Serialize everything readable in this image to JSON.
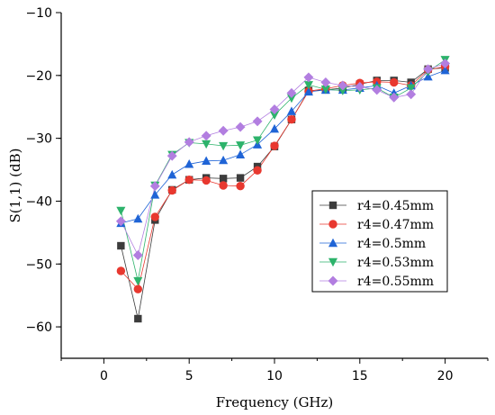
{
  "chart_data": {
    "type": "line",
    "xlabel": "Frequency (GHz)",
    "ylabel": "S(1,1) (dB)",
    "xlim": [
      -2.5,
      22.5
    ],
    "ylim": [
      -65,
      -10
    ],
    "xticks": [
      0,
      5,
      10,
      15,
      20
    ],
    "yticks": [
      -60,
      -50,
      -40,
      -30,
      -20,
      -10
    ],
    "legend_position": "center-right",
    "grid": false,
    "x": [
      1,
      2,
      3,
      4,
      5,
      6,
      7,
      8,
      9,
      10,
      11,
      12,
      13,
      14,
      15,
      16,
      17,
      18,
      19,
      20
    ],
    "series": [
      {
        "name": "r4=0.45mm",
        "color": "#3c3c3c",
        "marker": "square",
        "values": [
          -47.1,
          -58.7,
          -43.0,
          -38.2,
          -36.6,
          -36.3,
          -36.4,
          -36.3,
          -34.5,
          -31.3,
          -27.0,
          -22.4,
          -22.3,
          -22.0,
          -21.4,
          -20.8,
          -20.8,
          -21.1,
          -19.0,
          -18.8
        ]
      },
      {
        "name": "r4=0.47mm",
        "color": "#e8382f",
        "marker": "circle",
        "values": [
          -51.1,
          -54.0,
          -42.5,
          -38.3,
          -36.6,
          -36.7,
          -37.5,
          -37.6,
          -35.1,
          -31.2,
          -27.0,
          -22.5,
          -22.1,
          -21.6,
          -21.2,
          -21.0,
          -21.1,
          -21.6,
          -19.1,
          -18.6
        ]
      },
      {
        "name": "r4=0.5mm",
        "color": "#1f64d6",
        "marker": "triangle-up",
        "values": [
          -43.5,
          -42.8,
          -39.0,
          -35.8,
          -34.1,
          -33.6,
          -33.5,
          -32.6,
          -31.0,
          -28.5,
          -25.7,
          -22.6,
          -22.3,
          -22.3,
          -22.0,
          -21.6,
          -22.8,
          -21.6,
          -20.2,
          -19.2
        ]
      },
      {
        "name": "r4=0.53mm",
        "color": "#2db36b",
        "marker": "triangle-down",
        "values": [
          -41.5,
          -52.7,
          -37.5,
          -32.6,
          -30.7,
          -30.9,
          -31.2,
          -31.1,
          -30.3,
          -26.3,
          -23.6,
          -21.5,
          -22.2,
          -22.4,
          -22.3,
          -22.0,
          -23.5,
          -22.0,
          -19.4,
          -17.5
        ]
      },
      {
        "name": "r4=0.55mm",
        "color": "#b27ee0",
        "marker": "diamond",
        "values": [
          -43.2,
          -48.6,
          -37.6,
          -32.8,
          -30.6,
          -29.6,
          -28.8,
          -28.2,
          -27.3,
          -25.4,
          -22.8,
          -20.3,
          -21.1,
          -21.6,
          -21.8,
          -22.3,
          -23.5,
          -23.0,
          -19.0,
          -18.1
        ]
      }
    ]
  }
}
